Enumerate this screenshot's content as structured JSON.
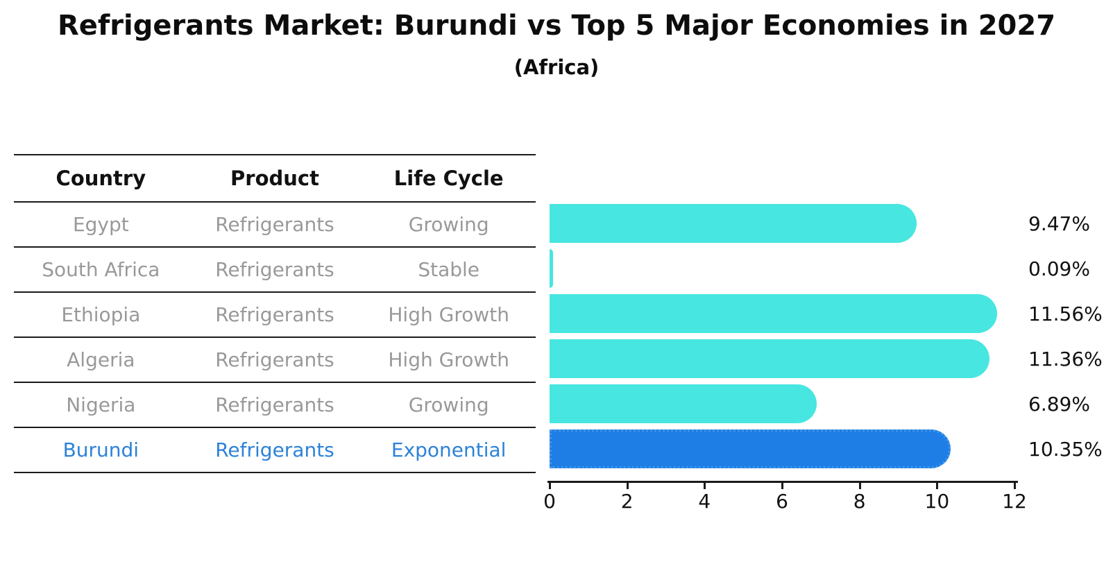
{
  "title": "Refrigerants Market: Burundi vs Top 5 Major Economies in 2027",
  "subtitle": "(Africa)",
  "table": {
    "headers": [
      "Country",
      "Product",
      "Life Cycle"
    ],
    "rows": [
      {
        "country": "Egypt",
        "product": "Refrigerants",
        "life_cycle": "Growing",
        "share_label": "9.47%"
      },
      {
        "country": "South Africa",
        "product": "Refrigerants",
        "life_cycle": "Stable",
        "share_label": "0.09%"
      },
      {
        "country": "Ethiopia",
        "product": "Refrigerants",
        "life_cycle": "High Growth",
        "share_label": "11.56%"
      },
      {
        "country": "Algeria",
        "product": "Refrigerants",
        "life_cycle": "High Growth",
        "share_label": "11.36%"
      },
      {
        "country": "Nigeria",
        "product": "Refrigerants",
        "life_cycle": "Growing",
        "share_label": "6.89%"
      },
      {
        "country": "Burundi",
        "product": "Refrigerants",
        "life_cycle": "Exponential",
        "share_label": "10.35%"
      }
    ]
  },
  "chart_data": {
    "type": "bar",
    "orientation": "horizontal",
    "title": "Refrigerants Market: Burundi vs Top 5 Major Economies in 2027",
    "subtitle": "(Africa)",
    "categories": [
      "Egypt",
      "South Africa",
      "Ethiopia",
      "Algeria",
      "Nigeria",
      "Burundi"
    ],
    "values": [
      9.47,
      0.09,
      11.56,
      11.36,
      6.89,
      10.35
    ],
    "value_labels": [
      "9.47%",
      "0.09%",
      "11.56%",
      "11.36%",
      "6.89%",
      "10.35%"
    ],
    "xlim": [
      0,
      12
    ],
    "x_ticks": [
      0,
      2,
      4,
      6,
      8,
      10,
      12
    ],
    "grid": false,
    "legend": "none",
    "highlight_index": 5
  },
  "colors": {
    "bar": "#47E6E0",
    "highlight_bar": "#1E7EE5",
    "highlight_border": "#3F96EA",
    "row_text": "#999999",
    "highlight_text": "#2C82D8",
    "line": "#1a1a1a",
    "text": "#111111"
  }
}
